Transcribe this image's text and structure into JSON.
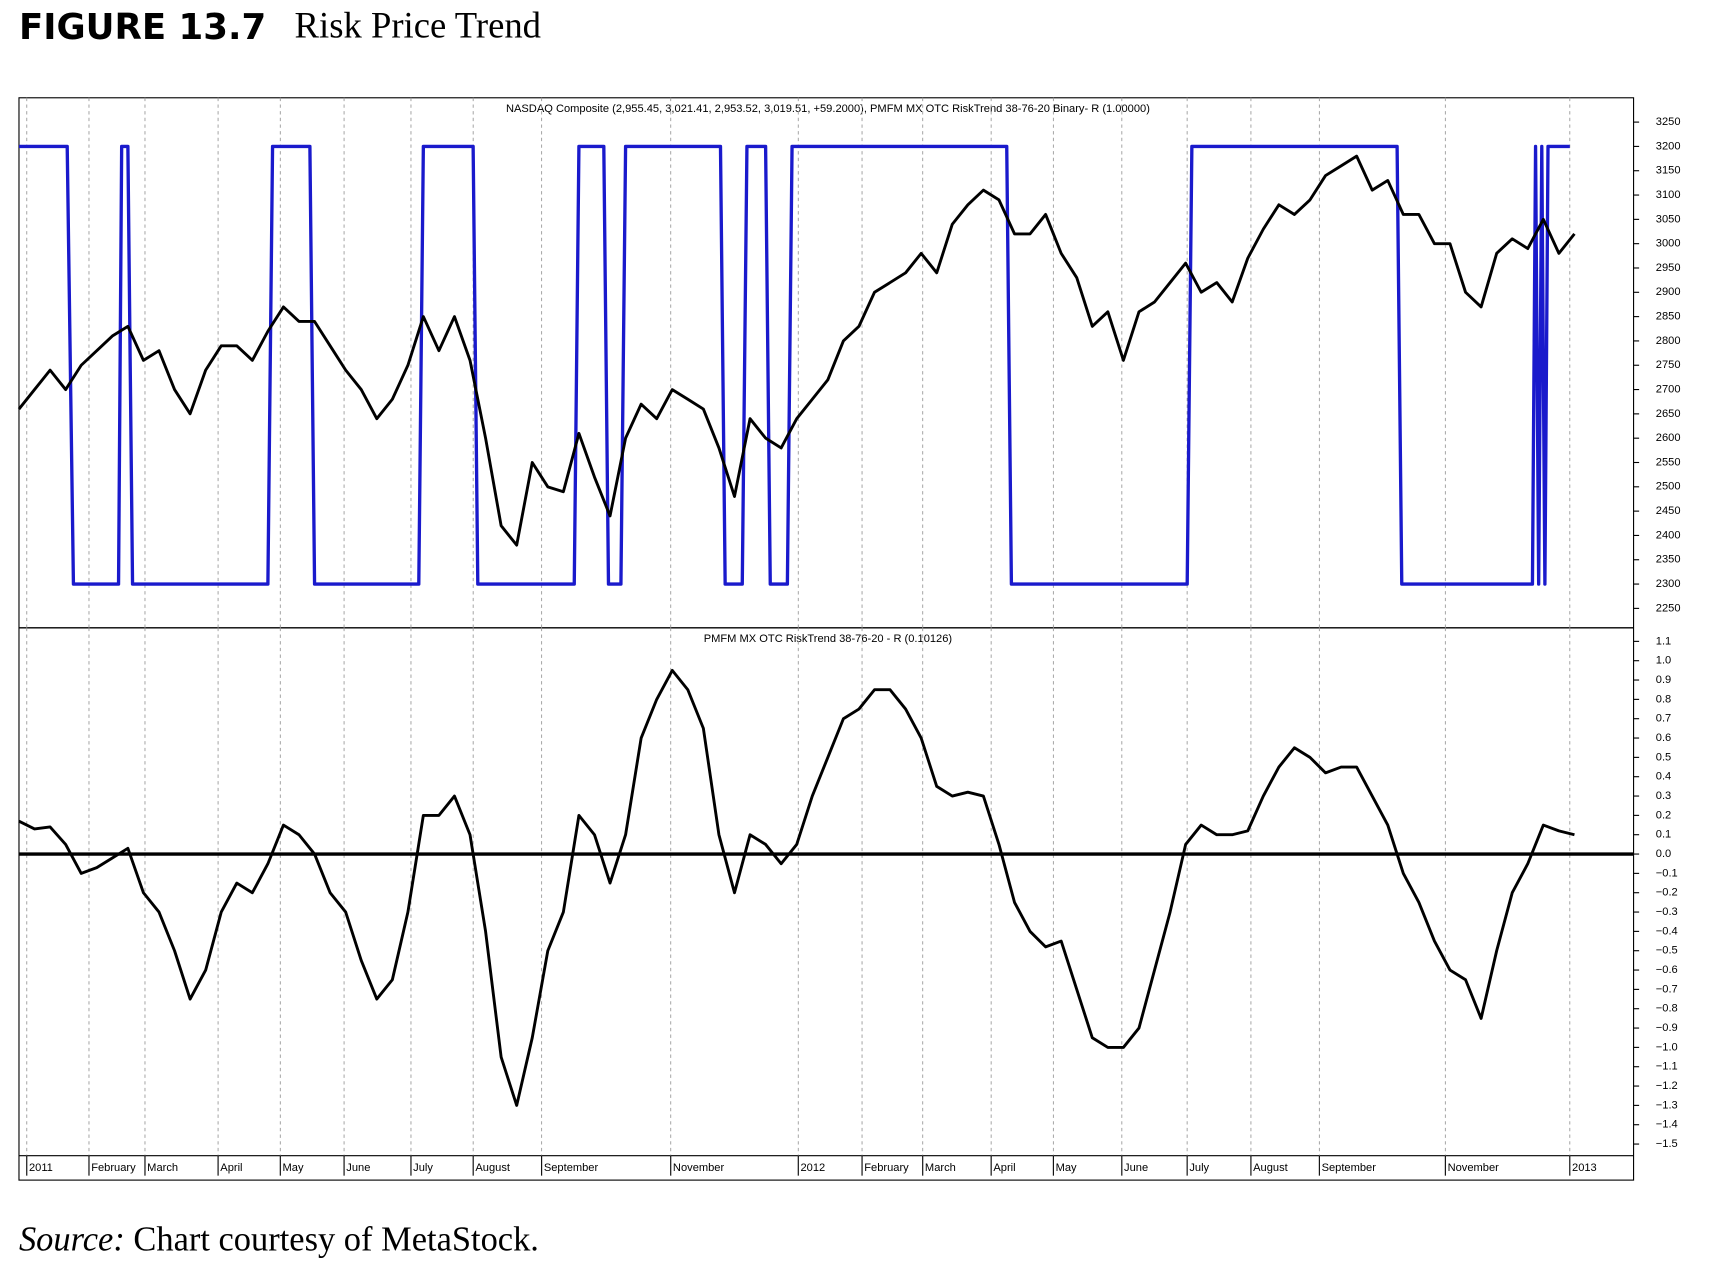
{
  "figure_label": "FIGURE 13.7",
  "figure_title": "Risk Price Trend",
  "source_label": "Source:",
  "source_text": "Chart courtesy of MetaStock.",
  "chart_data": [
    {
      "type": "line",
      "title": "NASDAQ Composite (2,955.45, 3,021.41, 2,953.52, 3,019.51, +59.2000), PMFM MX OTC RiskTrend 38-76-20 Binary- R (1.00000)",
      "xlim": [
        0,
        103.8
      ],
      "ylim": [
        2210,
        3300
      ],
      "grid": true,
      "yticks": [
        2250,
        2300,
        2350,
        2400,
        2450,
        2500,
        2550,
        2600,
        2650,
        2700,
        2750,
        2800,
        2850,
        2900,
        2950,
        3000,
        3050,
        3100,
        3150,
        3200,
        3250
      ],
      "series": [
        {
          "color": "#1a1acc",
          "x": [
            0,
            3.1,
            3.5,
            6.4,
            6.6,
            7.0,
            7.3,
            16.0,
            16.3,
            18.7,
            19.0,
            25.7,
            26.0,
            29.2,
            29.5,
            35.7,
            36.0,
            37.6,
            37.9,
            38.7,
            39.0,
            45.1,
            45.4,
            46.5,
            46.8,
            48.0,
            48.3,
            49.4,
            49.7,
            63.5,
            63.8,
            75.1,
            75.4,
            88.6,
            88.9,
            97.3,
            97.5,
            97.7,
            97.9,
            98.1,
            98.3,
            99.7
          ],
          "values": [
            3200,
            3200,
            2300,
            2300,
            3200,
            3200,
            2300,
            2300,
            3200,
            3200,
            2300,
            2300,
            3200,
            3200,
            2300,
            2300,
            3200,
            3200,
            2300,
            2300,
            3200,
            3200,
            2300,
            2300,
            3200,
            3200,
            2300,
            2300,
            3200,
            3200,
            2300,
            2300,
            3200,
            3200,
            2300,
            2300,
            3200,
            2300,
            3200,
            2300,
            3200,
            3200
          ]
        },
        {
          "color": "#000000",
          "x": [
            0,
            1,
            2,
            3,
            4,
            5,
            6,
            7,
            8,
            9,
            10,
            11,
            12,
            13,
            14,
            15,
            16,
            17,
            18,
            19,
            20,
            21,
            22,
            23,
            24,
            25,
            26,
            27,
            28,
            29,
            30,
            31,
            32,
            33,
            34,
            35,
            36,
            37,
            38,
            39,
            40,
            41,
            42,
            43,
            44,
            45,
            46,
            47,
            48,
            49,
            50,
            51,
            52,
            53,
            54,
            55,
            56,
            57,
            58,
            59,
            60,
            61,
            62,
            63,
            64,
            65,
            66,
            67,
            68,
            69,
            70,
            71,
            72,
            73,
            74,
            75,
            76,
            77,
            78,
            79,
            80,
            81,
            82,
            83,
            84,
            85,
            86,
            87,
            88,
            89,
            90,
            91,
            92,
            93,
            94,
            95,
            96,
            97,
            98,
            99,
            100
          ],
          "values": [
            2660,
            2700,
            2740,
            2700,
            2750,
            2780,
            2810,
            2830,
            2760,
            2780,
            2700,
            2650,
            2740,
            2790,
            2790,
            2760,
            2820,
            2870,
            2840,
            2840,
            2790,
            2740,
            2700,
            2640,
            2680,
            2750,
            2850,
            2780,
            2850,
            2760,
            2600,
            2420,
            2380,
            2550,
            2500,
            2490,
            2610,
            2520,
            2440,
            2600,
            2670,
            2640,
            2700,
            2680,
            2660,
            2580,
            2480,
            2640,
            2600,
            2580,
            2640,
            2680,
            2720,
            2800,
            2830,
            2900,
            2920,
            2940,
            2980,
            2940,
            3040,
            3080,
            3110,
            3090,
            3020,
            3020,
            3060,
            2980,
            2930,
            2830,
            2860,
            2760,
            2860,
            2880,
            2920,
            2960,
            2900,
            2920,
            2880,
            2970,
            3030,
            3080,
            3060,
            3090,
            3140,
            3160,
            3180,
            3110,
            3130,
            3060,
            3060,
            3000,
            3000,
            2900,
            2870,
            2980,
            3010,
            2990,
            3050,
            2980,
            3020
          ]
        }
      ]
    },
    {
      "type": "line",
      "title": "PMFM MX OTC RiskTrend 38-76-20 - R  (0.10126)",
      "xlim": [
        0,
        103.8
      ],
      "ylim": [
        -1.56,
        1.17
      ],
      "grid": true,
      "reference_line": 0,
      "xticks": [
        {
          "value": 0.5,
          "label": "2011"
        },
        {
          "value": 4.5,
          "label": "February"
        },
        {
          "value": 8.1,
          "label": "March"
        },
        {
          "value": 12.8,
          "label": "April"
        },
        {
          "value": 16.8,
          "label": "May"
        },
        {
          "value": 20.9,
          "label": "June"
        },
        {
          "value": 25.2,
          "label": "July"
        },
        {
          "value": 29.2,
          "label": "August"
        },
        {
          "value": 33.6,
          "label": "September"
        },
        {
          "value": 41.9,
          "label": "November"
        },
        {
          "value": 50.1,
          "label": "2012"
        },
        {
          "value": 54.2,
          "label": "February"
        },
        {
          "value": 58.1,
          "label": "March"
        },
        {
          "value": 62.5,
          "label": "April"
        },
        {
          "value": 66.5,
          "label": "May"
        },
        {
          "value": 70.9,
          "label": "June"
        },
        {
          "value": 75.1,
          "label": "July"
        },
        {
          "value": 79.2,
          "label": "August"
        },
        {
          "value": 83.6,
          "label": "September"
        },
        {
          "value": 91.7,
          "label": "November"
        },
        {
          "value": 99.7,
          "label": "2013"
        }
      ],
      "yticks": [
        1.1,
        {
          "value": 1,
          "label": "1.0"
        },
        0.9,
        0.8,
        0.7,
        0.6,
        0.5,
        0.4,
        0.3,
        0.2,
        0.1,
        {
          "value": 0,
          "label": "0.0"
        },
        {
          "value": -0.1,
          "label": "−0.1"
        },
        {
          "value": -0.2,
          "label": "−0.2"
        },
        {
          "value": -0.3,
          "label": "−0.3"
        },
        {
          "value": -0.4,
          "label": "−0.4"
        },
        {
          "value": -0.5,
          "label": "−0.5"
        },
        {
          "value": -0.6,
          "label": "−0.6"
        },
        {
          "value": -0.7,
          "label": "−0.7"
        },
        {
          "value": -0.8,
          "label": "−0.8"
        },
        {
          "value": -0.9,
          "label": "−0.9"
        },
        {
          "value": -1,
          "label": "−1.0"
        },
        {
          "value": -1.1,
          "label": "−1.1"
        },
        {
          "value": -1.2,
          "label": "−1.2"
        },
        {
          "value": -1.3,
          "label": "−1.3"
        },
        {
          "value": -1.4,
          "label": "−1.4"
        },
        {
          "value": -1.5,
          "label": "−1.5"
        }
      ],
      "series": [
        {
          "color": "#000000",
          "x": [
            0,
            1,
            2,
            3,
            4,
            5,
            6,
            7,
            8,
            9,
            10,
            11,
            12,
            13,
            14,
            15,
            16,
            17,
            18,
            19,
            20,
            21,
            22,
            23,
            24,
            25,
            26,
            27,
            28,
            29,
            30,
            31,
            32,
            33,
            34,
            35,
            36,
            37,
            38,
            39,
            40,
            41,
            42,
            43,
            44,
            45,
            46,
            47,
            48,
            49,
            50,
            51,
            52,
            53,
            54,
            55,
            56,
            57,
            58,
            59,
            60,
            61,
            62,
            63,
            64,
            65,
            66,
            67,
            68,
            69,
            70,
            71,
            72,
            73,
            74,
            75,
            76,
            77,
            78,
            79,
            80,
            81,
            82,
            83,
            84,
            85,
            86,
            87,
            88,
            89,
            90,
            91,
            92,
            93,
            94,
            95,
            96,
            97,
            98,
            99,
            100
          ],
          "values": [
            0.17,
            0.13,
            0.14,
            0.05,
            -0.1,
            -0.07,
            -0.02,
            0.03,
            -0.2,
            -0.3,
            -0.5,
            -0.75,
            -0.6,
            -0.3,
            -0.15,
            -0.2,
            -0.05,
            0.15,
            0.1,
            0.0,
            -0.2,
            -0.3,
            -0.55,
            -0.75,
            -0.65,
            -0.3,
            0.2,
            0.2,
            0.3,
            0.1,
            -0.4,
            -1.05,
            -1.3,
            -0.95,
            -0.5,
            -0.3,
            0.2,
            0.1,
            -0.15,
            0.1,
            0.6,
            0.8,
            0.95,
            0.85,
            0.65,
            0.1,
            -0.2,
            0.1,
            0.05,
            -0.05,
            0.05,
            0.3,
            0.5,
            0.7,
            0.75,
            0.85,
            0.85,
            0.75,
            0.6,
            0.35,
            0.3,
            0.32,
            0.3,
            0.05,
            -0.25,
            -0.4,
            -0.48,
            -0.45,
            -0.7,
            -0.95,
            -1.0,
            -1.0,
            -0.9,
            -0.6,
            -0.3,
            0.05,
            0.15,
            0.1,
            0.1,
            0.12,
            0.3,
            0.45,
            0.55,
            0.5,
            0.42,
            0.45,
            0.45,
            0.3,
            0.15,
            -0.1,
            -0.25,
            -0.45,
            -0.6,
            -0.65,
            -0.85,
            -0.5,
            -0.2,
            -0.05,
            0.15,
            0.12,
            0.1
          ]
        }
      ]
    }
  ]
}
